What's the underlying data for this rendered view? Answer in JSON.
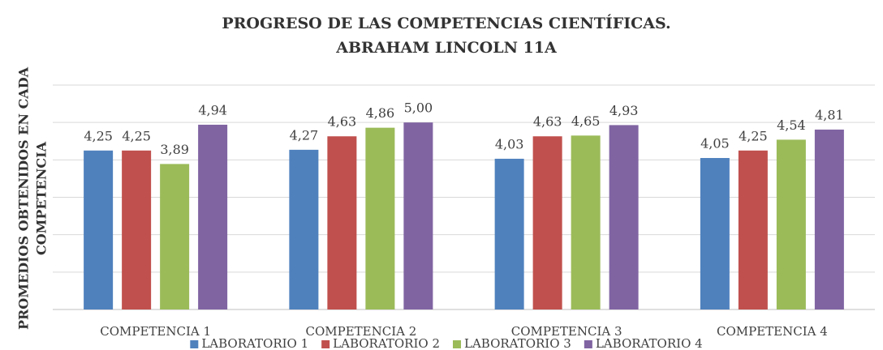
{
  "chart_data": {
    "type": "bar",
    "title": [
      "PROGRESO DE LAS COMPETENCIAS CIENTÍFICAS.",
      "ABRAHAM LINCOLN 11A"
    ],
    "y_label": [
      "PROMEDIOS OBTENIDOS EN CADA",
      "COMPETENCIA"
    ],
    "categories": [
      "COMPETENCIA 1",
      "COMPETENCIA 2",
      "COMPETENCIA 3",
      "COMPETENCIA 4"
    ],
    "series": [
      {
        "name": "LABORATORIO 1",
        "color": "#4f81bd",
        "values": [
          4.25,
          4.27,
          4.03,
          4.05
        ],
        "value_labels": [
          "4,25",
          "4,27",
          "4,03",
          "4,05"
        ]
      },
      {
        "name": "LABORATORIO 2",
        "color": "#c0504d",
        "values": [
          4.25,
          4.63,
          4.63,
          4.25
        ],
        "value_labels": [
          "4,25",
          "4,63",
          "4,63",
          "4,25"
        ]
      },
      {
        "name": "LABORATORIO 3",
        "color": "#9bbb59",
        "values": [
          3.89,
          4.86,
          4.65,
          4.54
        ],
        "value_labels": [
          "3,89",
          "4,86",
          "4,65",
          "4,54"
        ]
      },
      {
        "name": "LABORATORIO 4",
        "color": "#8064a2",
        "values": [
          4.94,
          5.0,
          4.93,
          4.81
        ],
        "value_labels": [
          "4,94",
          "5,00",
          "4,93",
          "4,81"
        ]
      }
    ],
    "ylim": [
      0,
      6
    ],
    "yticks": [
      0,
      1,
      2,
      3,
      4,
      5,
      6
    ],
    "grid": true,
    "legend": "bottom"
  }
}
